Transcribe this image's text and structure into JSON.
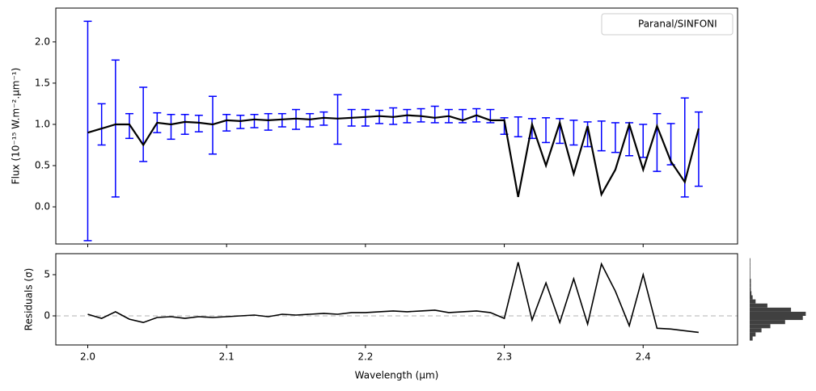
{
  "chart_data": [
    {
      "type": "errorbar",
      "ylabel": "Flux (10⁻¹⁵  W.m⁻².μm⁻¹)",
      "x": [
        2.0,
        2.01,
        2.02,
        2.03,
        2.04,
        2.05,
        2.06,
        2.07,
        2.08,
        2.09,
        2.1,
        2.11,
        2.12,
        2.13,
        2.14,
        2.15,
        2.16,
        2.17,
        2.18,
        2.19,
        2.2,
        2.21,
        2.22,
        2.23,
        2.24,
        2.25,
        2.26,
        2.27,
        2.28,
        2.29,
        2.3,
        2.31,
        2.32,
        2.33,
        2.34,
        2.35,
        2.36,
        2.37,
        2.38,
        2.39,
        2.4,
        2.41,
        2.42,
        2.43,
        2.44
      ],
      "series": [
        {
          "name": "Paranal/SINFONI",
          "color": "#0000ff",
          "values": [
            0.92,
            1.0,
            0.95,
            0.98,
            1.0,
            1.02,
            0.97,
            1.0,
            1.01,
            0.99,
            1.02,
            1.03,
            1.04,
            1.03,
            1.05,
            1.06,
            1.05,
            1.07,
            1.06,
            1.08,
            1.08,
            1.09,
            1.1,
            1.1,
            1.11,
            1.12,
            1.1,
            1.1,
            1.11,
            1.1,
            0.98,
            0.97,
            0.95,
            0.93,
            0.92,
            0.9,
            0.88,
            0.86,
            0.84,
            0.82,
            0.8,
            0.78,
            0.76,
            0.72,
            0.7
          ],
          "errors": [
            1.33,
            0.25,
            0.83,
            0.15,
            0.45,
            0.12,
            0.15,
            0.12,
            0.1,
            0.35,
            0.1,
            0.08,
            0.08,
            0.1,
            0.08,
            0.12,
            0.08,
            0.08,
            0.3,
            0.1,
            0.1,
            0.08,
            0.1,
            0.08,
            0.08,
            0.1,
            0.08,
            0.08,
            0.08,
            0.08,
            0.1,
            0.12,
            0.12,
            0.15,
            0.15,
            0.15,
            0.15,
            0.18,
            0.18,
            0.2,
            0.2,
            0.35,
            0.25,
            0.6,
            0.45
          ]
        },
        {
          "color": "#000000",
          "values": [
            0.9,
            0.95,
            1.0,
            1.0,
            0.75,
            1.02,
            1.0,
            1.03,
            1.02,
            1.0,
            1.05,
            1.04,
            1.06,
            1.05,
            1.06,
            1.07,
            1.06,
            1.08,
            1.07,
            1.08,
            1.09,
            1.1,
            1.09,
            1.11,
            1.1,
            1.08,
            1.1,
            1.05,
            1.11,
            1.05,
            1.05,
            0.12,
            1.0,
            0.5,
            1.02,
            0.4,
            0.98,
            0.15,
            0.45,
            1.0,
            0.45,
            0.98,
            0.55,
            0.3,
            0.95
          ]
        }
      ],
      "xlim": [
        1.977,
        2.468
      ],
      "xticks": [
        {
          "value": 2,
          "label": "2.0"
        },
        2.1,
        2.2,
        2.3,
        2.4
      ],
      "ylim": [
        -0.45,
        2.41
      ],
      "yticks": [
        {
          "value": 0,
          "label": "0.0"
        },
        0.5,
        {
          "value": 1,
          "label": "1.0"
        },
        1.5,
        {
          "value": 2,
          "label": "2.0"
        }
      ],
      "legend": "upper right"
    },
    {
      "type": "line",
      "xlabel": "Wavelength (μm)",
      "ylabel": "Residuals (σ)",
      "series": [
        {
          "color": "#000000",
          "values": [
            0.2,
            -0.3,
            0.5,
            -0.4,
            -0.8,
            -0.2,
            -0.1,
            -0.3,
            -0.1,
            -0.2,
            -0.1,
            0.0,
            0.1,
            -0.1,
            0.2,
            0.1,
            0.2,
            0.3,
            0.2,
            0.4,
            0.4,
            0.5,
            0.6,
            0.5,
            0.6,
            0.7,
            0.4,
            0.5,
            0.6,
            0.4,
            -0.3,
            6.5,
            -0.5,
            4.0,
            -0.8,
            4.5,
            -1.0,
            6.3,
            3.0,
            -1.2,
            5.0,
            -1.5,
            -1.6,
            -1.8,
            -2.0
          ]
        }
      ],
      "xlim": [
        1.977,
        2.468
      ],
      "xticks": [
        {
          "value": 2,
          "label": "2.0"
        },
        2.1,
        2.2,
        2.3,
        2.4
      ],
      "ylim": [
        -3.53,
        7.55
      ],
      "yticks": [
        0,
        5
      ],
      "reference_line": 0,
      "reference_color": "#cccccc"
    },
    {
      "type": "histogram",
      "orientation": "horizontal",
      "color": "#404040",
      "bins": [
        -3,
        -2.5,
        -2,
        -1.5,
        -1,
        -0.5,
        0,
        0.5,
        1,
        1.5,
        2,
        2.5,
        3,
        3.5,
        4,
        4.5,
        5,
        5.5,
        6,
        6.5,
        7
      ],
      "counts": [
        5,
        10,
        20,
        35,
        60,
        90,
        95,
        70,
        30,
        10,
        5,
        3,
        2,
        2,
        2,
        1,
        1,
        1,
        1,
        1
      ],
      "xlim": [
        0,
        100
      ],
      "ylim": [
        -3.53,
        7.55
      ]
    }
  ]
}
